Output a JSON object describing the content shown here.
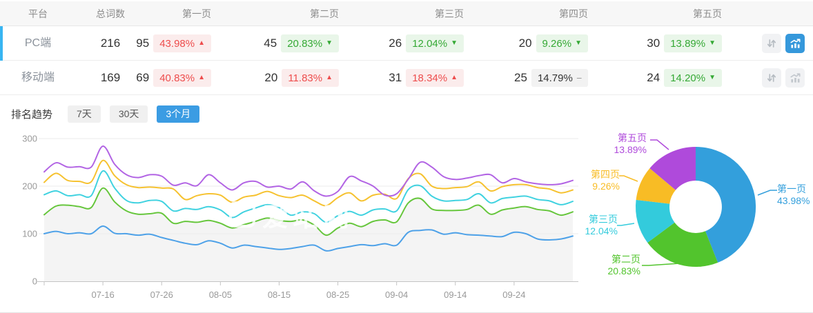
{
  "table": {
    "headers": [
      "平台",
      "总词数",
      "第一页",
      "第二页",
      "第三页",
      "第四页",
      "第五页"
    ],
    "rows": [
      {
        "platform": "PC端",
        "total": "216",
        "selected": true,
        "pages": [
          {
            "count": "95",
            "pct": "43.98%",
            "trend": "up"
          },
          {
            "count": "45",
            "pct": "20.83%",
            "trend": "down"
          },
          {
            "count": "26",
            "pct": "12.04%",
            "trend": "down"
          },
          {
            "count": "20",
            "pct": "9.26%",
            "trend": "down"
          },
          {
            "count": "30",
            "pct": "13.89%",
            "trend": "down"
          }
        ],
        "chart_button_active": true
      },
      {
        "platform": "移动端",
        "total": "169",
        "selected": false,
        "pages": [
          {
            "count": "69",
            "pct": "40.83%",
            "trend": "up"
          },
          {
            "count": "20",
            "pct": "11.83%",
            "trend": "up"
          },
          {
            "count": "31",
            "pct": "18.34%",
            "trend": "up"
          },
          {
            "count": "25",
            "pct": "14.79%",
            "trend": "flat"
          },
          {
            "count": "24",
            "pct": "14.20%",
            "trend": "down"
          }
        ],
        "chart_button_active": false
      }
    ]
  },
  "trend_section": {
    "title": "排名趋势",
    "tabs": [
      {
        "label": "7天",
        "active": false
      },
      {
        "label": "30天",
        "active": false
      },
      {
        "label": "3个月",
        "active": true
      }
    ]
  },
  "watermark": "爱站网",
  "trend_symbols": {
    "up": "▲",
    "down": "▼",
    "flat": "−"
  },
  "colors": {
    "accent_blue": "#3598db",
    "active_tab_bg": "#3b9ce3",
    "row_active_bar": "#38b5f2",
    "badge_up_bg": "#fbecec",
    "badge_up_text": "#ee4c4c",
    "badge_down_bg": "#e9f6e9",
    "badge_down_text": "#35a935",
    "badge_flat_bg": "#f2f2f2",
    "badge_flat_text": "#333333",
    "area_fill": "#f4f4f4",
    "grid_line": "#ebebeb",
    "axis_line": "#c4c4c4",
    "axis_text": "#999999"
  },
  "chart_data": [
    {
      "type": "line",
      "title": "",
      "x_start": "07-06",
      "x_end": "10-04",
      "x_step_days": 2,
      "x_tick_labels": [
        "07-16",
        "07-26",
        "08-05",
        "08-15",
        "08-25",
        "09-04",
        "09-14",
        "09-24"
      ],
      "x_tick_indices": [
        5,
        10,
        15,
        20,
        25,
        30,
        35,
        40
      ],
      "ylim": [
        0,
        300
      ],
      "yticks": [
        0,
        100,
        200,
        300
      ],
      "grid": true,
      "legend": false,
      "series": [
        {
          "name": "第一页",
          "color": "#4da1e8",
          "values": [
            100,
            105,
            100,
            102,
            100,
            116,
            101,
            100,
            97,
            99,
            92,
            86,
            80,
            77,
            85,
            80,
            70,
            76,
            73,
            70,
            67,
            69,
            73,
            76,
            64,
            69,
            73,
            77,
            75,
            79,
            76,
            103,
            107,
            108,
            99,
            102,
            98,
            97,
            95,
            94,
            103,
            100,
            89,
            87,
            89,
            95
          ]
        },
        {
          "name": "第二页",
          "color": "#66c63c",
          "area": true,
          "values": [
            140,
            158,
            160,
            157,
            155,
            196,
            167,
            148,
            141,
            142,
            143,
            122,
            126,
            124,
            128,
            122,
            112,
            119,
            126,
            133,
            128,
            126,
            129,
            118,
            97,
            112,
            122,
            115,
            126,
            129,
            125,
            165,
            174,
            152,
            149,
            149,
            151,
            160,
            141,
            150,
            154,
            157,
            151,
            148,
            139,
            146
          ]
        },
        {
          "name": "第三页",
          "color": "#40d2e0",
          "values": [
            182,
            190,
            180,
            182,
            180,
            232,
            196,
            170,
            165,
            170,
            168,
            148,
            153,
            151,
            157,
            150,
            134,
            146,
            154,
            161,
            155,
            139,
            146,
            142,
            124,
            138,
            147,
            139,
            150,
            152,
            148,
            193,
            201,
            179,
            169,
            170,
            172,
            184,
            165,
            174,
            177,
            179,
            172,
            169,
            161,
            168
          ]
        },
        {
          "name": "第四页",
          "color": "#f6c230",
          "values": [
            208,
            227,
            212,
            210,
            209,
            254,
            222,
            203,
            197,
            198,
            196,
            194,
            172,
            180,
            184,
            181,
            166,
            177,
            181,
            189,
            180,
            176,
            181,
            169,
            159,
            176,
            186,
            169,
            181,
            183,
            174,
            216,
            226,
            200,
            195,
            197,
            199,
            209,
            190,
            199,
            203,
            203,
            197,
            194,
            186,
            192
          ]
        },
        {
          "name": "第五页",
          "color": "#b264e4",
          "values": [
            230,
            249,
            240,
            241,
            240,
            284,
            246,
            224,
            218,
            224,
            221,
            202,
            207,
            201,
            224,
            207,
            192,
            207,
            210,
            198,
            200,
            194,
            209,
            190,
            179,
            189,
            220,
            211,
            200,
            181,
            184,
            215,
            250,
            240,
            220,
            214,
            217,
            222,
            224,
            207,
            216,
            209,
            205,
            203,
            205,
            212
          ]
        }
      ]
    },
    {
      "type": "donut",
      "labels": [
        "第一页",
        "第二页",
        "第三页",
        "第四页",
        "第五页"
      ],
      "values": [
        43.98,
        20.83,
        12.04,
        9.26,
        13.89
      ],
      "unit": "%",
      "colors": [
        "#339fdc",
        "#52c42d",
        "#33cbdc",
        "#f8bc25",
        "#af4adb"
      ],
      "legend": false
    }
  ]
}
